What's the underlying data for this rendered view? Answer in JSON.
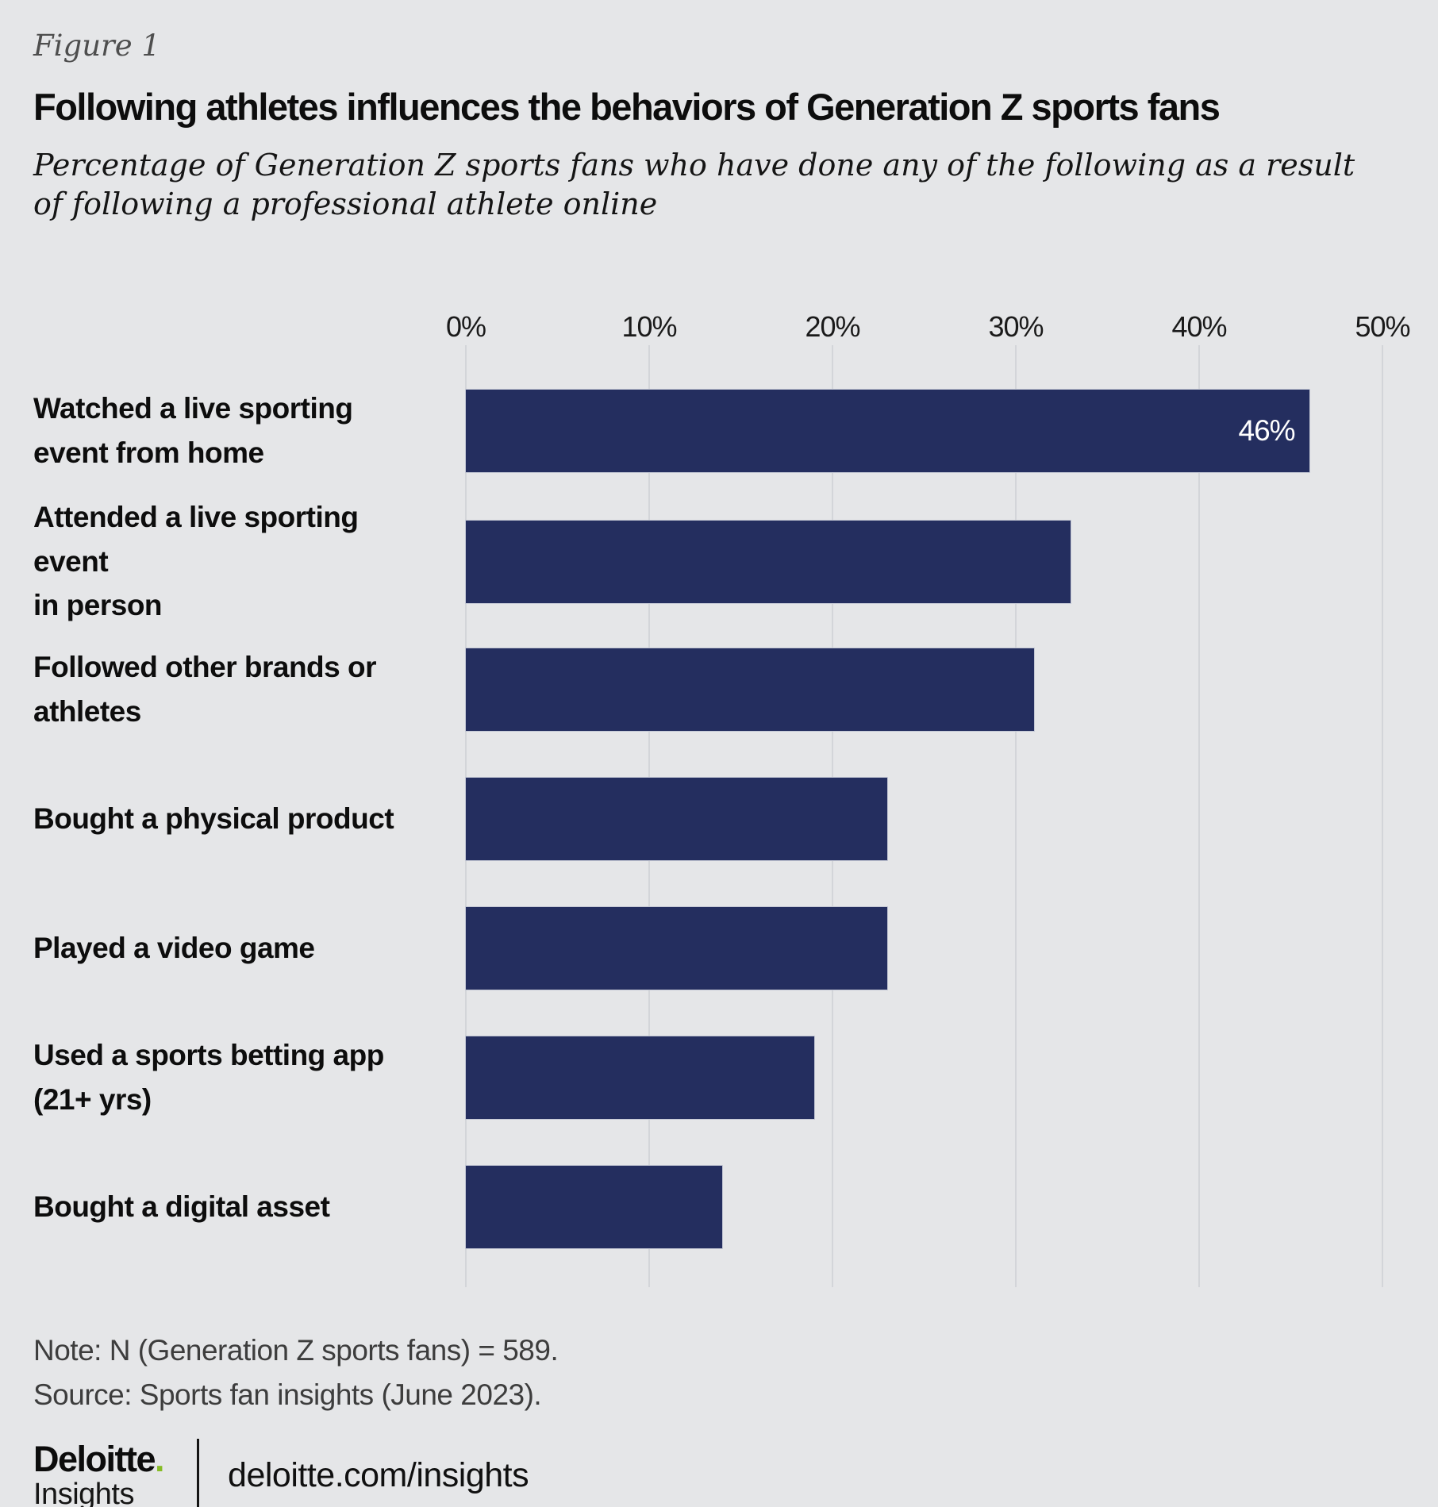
{
  "figure_label": "Figure 1",
  "title": "Following athletes influences the behaviors of Generation Z sports fans",
  "subtitle": "Percentage of Generation Z sports fans who have done any of the following as a result of following a professional athlete online",
  "chart_data": {
    "type": "bar",
    "orientation": "horizontal",
    "categories": [
      "Watched a live sporting\nevent from home",
      "Attended a live sporting event\nin person",
      "Followed other brands or athletes",
      "Bought a physical product",
      "Played a video game",
      "Used a sports betting app (21+ yrs)",
      "Bought a digital asset"
    ],
    "values": [
      46,
      33,
      31,
      23,
      23,
      19,
      14
    ],
    "data_labels": [
      "46%",
      "",
      "",
      "",
      "",
      "",
      ""
    ],
    "x_ticks": [
      "0%",
      "10%",
      "20%",
      "30%",
      "40%",
      "50%"
    ],
    "xlim": [
      0,
      50
    ],
    "grid": true,
    "legend": false,
    "bar_color": "#242e5f",
    "gridline_color": "#d3d5d9",
    "background_color": "#e5e6e8",
    "data_label_color": "#ffffff"
  },
  "note": "Note: N (Generation Z sports fans) = 589.",
  "source": "Source: Sports fan insights (June 2023).",
  "footer": {
    "brand_name": "Deloitte",
    "brand_dot": ".",
    "brand_dot_color": "#86bc25",
    "brand_sub": "Insights",
    "url": "deloitte.com/insights"
  }
}
